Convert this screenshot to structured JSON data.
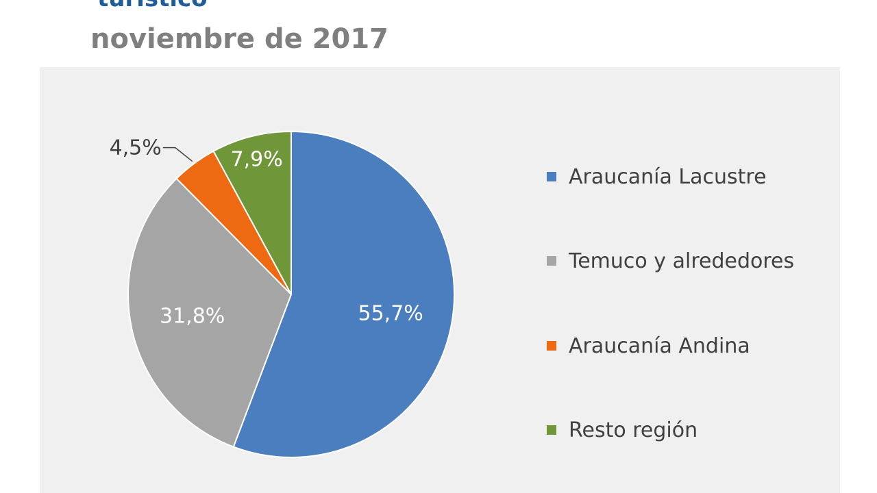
{
  "header": {
    "title_partial": "turístico",
    "subtitle": "noviembre de 2017"
  },
  "chart_data": {
    "type": "pie",
    "title": "turístico",
    "subtitle": "noviembre de 2017",
    "categories": [
      "Araucanía Lacustre",
      "Temuco y alrededores",
      "Araucanía Andina",
      "Resto región"
    ],
    "values": [
      55.7,
      31.8,
      4.5,
      7.9
    ],
    "labels": [
      "55,7%",
      "31,8%",
      "4,5%",
      "7,9%"
    ],
    "colors": [
      "#4a7ebf",
      "#a5a5a5",
      "#ed6a12",
      "#70963a"
    ],
    "label_colors": [
      "#ffffff",
      "#ffffff",
      "#404040",
      "#ffffff"
    ],
    "legend_position": "right",
    "start": "12 o'clock",
    "direction": "clockwise"
  }
}
